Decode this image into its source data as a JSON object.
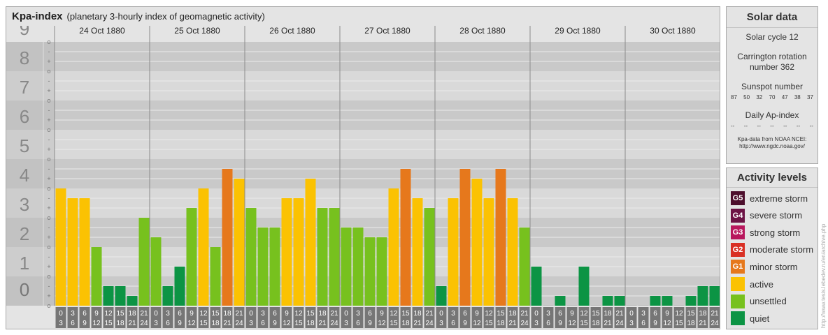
{
  "header": {
    "title": "Kpa-index",
    "subtitle": "(planetary 3-hourly index of geomagnetic activity)"
  },
  "solar": {
    "title": "Solar data",
    "cycle": "Solar cycle 12",
    "carrington_1": "Carrington rotation",
    "carrington_2": "number 362",
    "sunspot_title": "Sunspot number",
    "sunspots": [
      "87",
      "50",
      "32",
      "70",
      "47",
      "38",
      "37"
    ],
    "ap_title": "Daily Ap-index",
    "ap": [
      "--",
      "--",
      "--",
      "--",
      "--",
      "--",
      "--"
    ],
    "source_1": "Kpa-data from NOAA NCEI:",
    "source_2": "http://www.ngdc.noaa.gov/"
  },
  "levels": {
    "title": "Activity levels",
    "items": [
      {
        "badge": "G5",
        "label": "extreme storm",
        "color": "#4d0e2c"
      },
      {
        "badge": "G4",
        "label": "severe storm",
        "color": "#6c1345"
      },
      {
        "badge": "G3",
        "label": "strong storm",
        "color": "#b8175d"
      },
      {
        "badge": "G2",
        "label": "moderate storm",
        "color": "#d93024"
      },
      {
        "badge": "G1",
        "label": "minor storm",
        "color": "#e6781c"
      },
      {
        "badge": "",
        "label": "active",
        "color": "#fbc202"
      },
      {
        "badge": "",
        "label": "unsettled",
        "color": "#77c11e"
      },
      {
        "badge": "",
        "label": "quiet",
        "color": "#0c9444"
      }
    ]
  },
  "watermark": "http://www.tesis.lebedev.ru/en/archive.php",
  "chart_data": {
    "type": "bar",
    "title": "Kpa-index",
    "subtitle": "(planetary 3-hourly index of geomagnetic activity)",
    "ylim": [
      0,
      9
    ],
    "y_tick_labels": [
      "0",
      "1",
      "2",
      "3",
      "4",
      "5",
      "6",
      "7",
      "8",
      "9"
    ],
    "minor_tick_labels": [
      "o",
      "+",
      "-"
    ],
    "days": [
      "24 Oct 1880",
      "25 Oct 1880",
      "26 Oct 1880",
      "27 Oct 1880",
      "28 Oct 1880",
      "29 Oct 1880",
      "30 Oct 1880"
    ],
    "interval_starts": [
      "0",
      "3",
      "6",
      "9",
      "12",
      "15",
      "18",
      "21"
    ],
    "interval_ends": [
      "3",
      "6",
      "9",
      "12",
      "15",
      "18",
      "21",
      "24"
    ],
    "colors": {
      "quiet": "#0c9444",
      "unsettled": "#77c11e",
      "active": "#fbc202",
      "minor": "#e6781c"
    },
    "values": [
      4,
      3.667,
      3.667,
      2,
      0.667,
      0.667,
      0.333,
      3,
      2.333,
      0.667,
      1.333,
      3.333,
      4,
      2,
      4.667,
      4.333,
      3.333,
      2.667,
      2.667,
      3.667,
      3.667,
      4.333,
      3.333,
      3.333,
      2.667,
      2.667,
      2.333,
      2.333,
      4,
      4.667,
      3.667,
      3.333,
      0.667,
      3.667,
      4.667,
      4.333,
      3.667,
      4.667,
      3.667,
      2.667,
      1.333,
      0,
      0.333,
      0,
      1.333,
      0,
      0.333,
      0.333,
      0,
      0,
      0.333,
      0.333,
      0,
      0.333,
      0.667,
      0.667
    ]
  }
}
